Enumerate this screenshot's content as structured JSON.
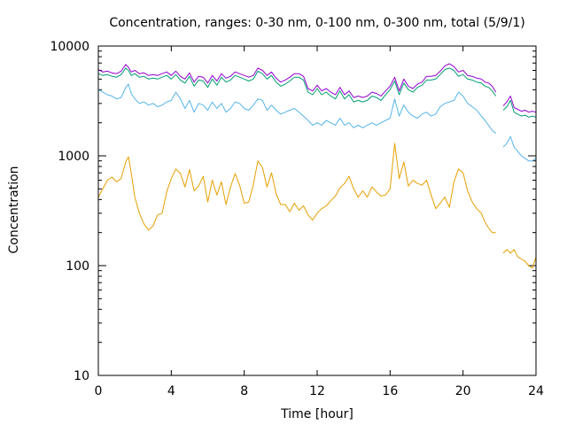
{
  "chart_data": {
    "type": "line",
    "title": "Concentration, ranges: 0-30 nm, 0-100 nm, 0-300 nm, total (5/9/1)",
    "xlabel": "Time [hour]",
    "ylabel": "Concentration",
    "xlim": [
      0,
      24
    ],
    "ylim": [
      10,
      10000
    ],
    "yscale": "log",
    "grid": false,
    "legend": "none",
    "x_ticks": [
      "0",
      "4",
      "8",
      "12",
      "16",
      "20",
      "24"
    ],
    "y_ticks": [
      "10",
      "100",
      "1000",
      "10000"
    ],
    "series": [
      {
        "color": "#e69f00",
        "x": [
          0.0,
          0.25,
          0.5,
          0.75,
          1.0,
          1.25,
          1.5,
          1.65,
          1.8,
          2.0,
          2.25,
          2.5,
          2.75,
          3.0,
          3.25,
          3.5,
          3.75,
          4.0,
          4.25,
          4.5,
          4.75,
          5.0,
          5.25,
          5.5,
          5.75,
          6.0,
          6.25,
          6.5,
          6.75,
          7.0,
          7.25,
          7.5,
          7.75,
          8.0,
          8.25,
          8.5,
          8.75,
          9.0,
          9.25,
          9.5,
          9.75,
          10.0,
          10.25,
          10.5,
          10.75,
          11.0,
          11.25,
          11.5,
          11.75,
          12.0,
          12.25,
          12.5,
          12.75,
          13.0,
          13.25,
          13.5,
          13.75,
          14.0,
          14.25,
          14.5,
          14.75,
          15.0,
          15.25,
          15.5,
          15.75,
          16.0,
          16.25,
          16.5,
          16.75,
          17.0,
          17.25,
          17.5,
          17.75,
          18.0,
          18.25,
          18.5,
          18.75,
          19.0,
          19.25,
          19.5,
          19.75,
          20.0,
          20.25,
          20.5,
          20.75,
          21.0,
          21.2,
          21.4,
          21.6,
          21.8,
          22.0,
          22.2,
          22.4,
          22.6,
          22.8,
          23.0,
          23.2,
          23.4,
          23.6,
          23.8,
          24.0
        ],
        "y": [
          420,
          500,
          600,
          640,
          580,
          620,
          880,
          980,
          700,
          420,
          300,
          240,
          210,
          230,
          290,
          300,
          470,
          620,
          760,
          690,
          520,
          750,
          480,
          530,
          650,
          380,
          600,
          440,
          580,
          360,
          520,
          690,
          540,
          370,
          380,
          550,
          900,
          780,
          520,
          700,
          450,
          360,
          360,
          310,
          370,
          320,
          350,
          290,
          260,
          300,
          330,
          350,
          390,
          430,
          510,
          560,
          650,
          500,
          420,
          480,
          420,
          520,
          470,
          430,
          440,
          500,
          1300,
          620,
          880,
          530,
          600,
          560,
          540,
          600,
          440,
          330,
          370,
          420,
          340,
          580,
          760,
          700,
          480,
          380,
          330,
          300,
          250,
          220,
          200,
          200,
          null,
          130,
          140,
          130,
          140,
          120,
          115,
          110,
          100,
          95,
          120
        ],
        "name": ""
      },
      {
        "color": "#56b4e9",
        "x": [
          0.0,
          0.25,
          0.5,
          0.75,
          1.0,
          1.25,
          1.5,
          1.65,
          1.8,
          2.0,
          2.25,
          2.5,
          2.75,
          3.0,
          3.25,
          3.5,
          3.75,
          4.0,
          4.25,
          4.5,
          4.75,
          5.0,
          5.25,
          5.5,
          5.75,
          6.0,
          6.25,
          6.5,
          6.75,
          7.0,
          7.25,
          7.5,
          7.75,
          8.0,
          8.25,
          8.5,
          8.75,
          9.0,
          9.25,
          9.5,
          9.75,
          10.0,
          10.25,
          10.5,
          10.75,
          11.0,
          11.25,
          11.5,
          11.75,
          12.0,
          12.25,
          12.5,
          12.75,
          13.0,
          13.25,
          13.5,
          13.75,
          14.0,
          14.25,
          14.5,
          14.75,
          15.0,
          15.25,
          15.5,
          15.75,
          16.0,
          16.25,
          16.5,
          16.75,
          17.0,
          17.25,
          17.5,
          17.75,
          18.0,
          18.25,
          18.5,
          18.75,
          19.0,
          19.25,
          19.5,
          19.75,
          20.0,
          20.25,
          20.5,
          20.75,
          21.0,
          21.2,
          21.4,
          21.6,
          21.8,
          22.0,
          22.2,
          22.4,
          22.6,
          22.8,
          23.0,
          23.2,
          23.4,
          23.6,
          23.8,
          24.0
        ],
        "y": [
          4000,
          3800,
          3600,
          3500,
          3300,
          3400,
          4200,
          4500,
          3700,
          3300,
          3000,
          3100,
          2900,
          3000,
          2800,
          2900,
          3100,
          3200,
          3800,
          3300,
          2700,
          3200,
          2500,
          3000,
          2900,
          2600,
          3100,
          2700,
          3000,
          2500,
          2700,
          3100,
          3000,
          2700,
          2600,
          2900,
          3300,
          3200,
          2600,
          2900,
          2600,
          2400,
          2500,
          2600,
          2700,
          2500,
          2300,
          2100,
          1900,
          2000,
          1900,
          2100,
          2000,
          1900,
          2200,
          1900,
          2000,
          1800,
          1900,
          1800,
          1900,
          2000,
          1900,
          2000,
          2100,
          2200,
          3300,
          2300,
          2900,
          2500,
          2300,
          2200,
          2400,
          2500,
          2300,
          2400,
          2800,
          3000,
          3100,
          3200,
          3800,
          3500,
          3000,
          2800,
          2600,
          2300,
          2100,
          1900,
          1700,
          1600,
          null,
          1200,
          1300,
          1500,
          1200,
          1100,
          1000,
          950,
          900,
          900,
          950
        ],
        "name": ""
      },
      {
        "color": "#009e73",
        "x": [
          0.0,
          0.25,
          0.5,
          0.75,
          1.0,
          1.25,
          1.5,
          1.65,
          1.8,
          2.0,
          2.25,
          2.5,
          2.75,
          3.0,
          3.25,
          3.5,
          3.75,
          4.0,
          4.25,
          4.5,
          4.75,
          5.0,
          5.25,
          5.5,
          5.75,
          6.0,
          6.25,
          6.5,
          6.75,
          7.0,
          7.25,
          7.5,
          7.75,
          8.0,
          8.25,
          8.5,
          8.75,
          9.0,
          9.25,
          9.5,
          9.75,
          10.0,
          10.25,
          10.5,
          10.75,
          11.0,
          11.25,
          11.5,
          11.75,
          12.0,
          12.25,
          12.5,
          12.75,
          13.0,
          13.25,
          13.5,
          13.75,
          14.0,
          14.25,
          14.5,
          14.75,
          15.0,
          15.25,
          15.5,
          15.75,
          16.0,
          16.25,
          16.5,
          16.75,
          17.0,
          17.25,
          17.5,
          17.75,
          18.0,
          18.25,
          18.5,
          18.75,
          19.0,
          19.25,
          19.5,
          19.75,
          20.0,
          20.25,
          20.5,
          20.75,
          21.0,
          21.2,
          21.4,
          21.6,
          21.8,
          22.0,
          22.2,
          22.4,
          22.6,
          22.8,
          23.0,
          23.2,
          23.4,
          23.6,
          23.8,
          24.0
        ],
        "y": [
          5600,
          5400,
          5500,
          5300,
          5200,
          5500,
          6300,
          6000,
          5400,
          5600,
          5200,
          5300,
          5000,
          5100,
          5000,
          5200,
          5400,
          5000,
          5500,
          4900,
          4600,
          5300,
          4300,
          4900,
          4800,
          4200,
          5000,
          4400,
          5200,
          4700,
          4900,
          5400,
          5200,
          5000,
          4800,
          5000,
          5900,
          5600,
          5000,
          5400,
          4700,
          4300,
          4500,
          4800,
          5200,
          5200,
          4900,
          3800,
          3600,
          4100,
          3600,
          3800,
          3500,
          3300,
          3900,
          3300,
          3600,
          3100,
          3200,
          3100,
          3200,
          3500,
          3400,
          3200,
          3600,
          4000,
          4800,
          3600,
          4600,
          4000,
          3800,
          4200,
          4400,
          4900,
          4900,
          5000,
          5500,
          6100,
          6300,
          6000,
          5300,
          5500,
          5000,
          4900,
          4700,
          4600,
          4300,
          4200,
          3900,
          3500,
          null,
          2600,
          2800,
          3200,
          2500,
          2400,
          2300,
          2350,
          2250,
          2300,
          2250
        ],
        "name": ""
      },
      {
        "color": "#9400d3",
        "x": [
          0.0,
          0.25,
          0.5,
          0.75,
          1.0,
          1.25,
          1.5,
          1.65,
          1.8,
          2.0,
          2.25,
          2.5,
          2.75,
          3.0,
          3.25,
          3.5,
          3.75,
          4.0,
          4.25,
          4.5,
          4.75,
          5.0,
          5.25,
          5.5,
          5.75,
          6.0,
          6.25,
          6.5,
          6.75,
          7.0,
          7.25,
          7.5,
          7.75,
          8.0,
          8.25,
          8.5,
          8.75,
          9.0,
          9.25,
          9.5,
          9.75,
          10.0,
          10.25,
          10.5,
          10.75,
          11.0,
          11.25,
          11.5,
          11.75,
          12.0,
          12.25,
          12.5,
          12.75,
          13.0,
          13.25,
          13.5,
          13.75,
          14.0,
          14.25,
          14.5,
          14.75,
          15.0,
          15.25,
          15.5,
          15.75,
          16.0,
          16.25,
          16.5,
          16.75,
          17.0,
          17.25,
          17.5,
          17.75,
          18.0,
          18.25,
          18.5,
          18.75,
          19.0,
          19.25,
          19.5,
          19.75,
          20.0,
          20.25,
          20.5,
          20.75,
          21.0,
          21.2,
          21.4,
          21.6,
          21.8,
          22.0,
          22.2,
          22.4,
          22.6,
          22.8,
          23.0,
          23.2,
          23.4,
          23.6,
          23.8,
          24.0
        ],
        "y": [
          6100,
          5800,
          5900,
          5700,
          5600,
          5900,
          6800,
          6400,
          5800,
          6000,
          5600,
          5700,
          5400,
          5500,
          5400,
          5600,
          5800,
          5400,
          5900,
          5300,
          5000,
          5700,
          4700,
          5300,
          5200,
          4600,
          5400,
          4800,
          5600,
          5100,
          5300,
          5800,
          5600,
          5400,
          5200,
          5400,
          6300,
          6000,
          5400,
          5800,
          5100,
          4700,
          4900,
          5200,
          5600,
          5600,
          5300,
          4100,
          3900,
          4400,
          3900,
          4100,
          3800,
          3600,
          4200,
          3600,
          3900,
          3400,
          3500,
          3400,
          3500,
          3800,
          3700,
          3500,
          3900,
          4300,
          5200,
          3900,
          5000,
          4300,
          4100,
          4500,
          4700,
          5300,
          5300,
          5400,
          5900,
          6600,
          6900,
          6500,
          5800,
          6000,
          5400,
          5300,
          5100,
          5000,
          4700,
          4600,
          4300,
          3800,
          null,
          2850,
          3100,
          3500,
          2750,
          2650,
          2550,
          2600,
          2500,
          2550,
          2500
        ],
        "name": ""
      }
    ]
  }
}
